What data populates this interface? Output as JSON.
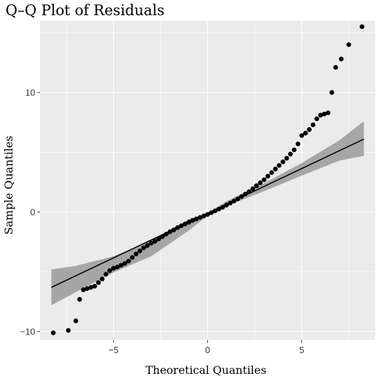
{
  "chart_data": {
    "type": "scatter",
    "title": "Q–Q Plot of Residuals",
    "xlabel": "Theoretical Quantiles",
    "ylabel": "Sample Quantiles",
    "xlim": [
      -8.9,
      8.9
    ],
    "ylim": [
      -10.7,
      16.0
    ],
    "xticks": [
      {
        "value": -5,
        "label": "−5"
      },
      {
        "value": 0,
        "label": "0"
      },
      {
        "value": 5,
        "label": "5"
      }
    ],
    "yticks": [
      {
        "value": -10,
        "label": "−10"
      },
      {
        "value": 0,
        "label": "0"
      },
      {
        "value": 10,
        "label": "10"
      }
    ],
    "grid": true,
    "panel_background": "#ebebeb",
    "grid_color": "#ffffff",
    "point_color": "#000000",
    "line_color": "#000000",
    "band_color": "#a6a6a6",
    "reference_line": {
      "x": [
        -8.3,
        8.3
      ],
      "y": [
        -6.3,
        6.1
      ]
    },
    "confidence_band": {
      "x": [
        -8.3,
        -7,
        -5,
        -3,
        -1,
        0,
        1,
        3,
        5,
        7,
        8.3
      ],
      "lower": [
        -7.8,
        -6.7,
        -5.05,
        -3.7,
        -1.55,
        -0.32,
        0.5,
        1.75,
        3.05,
        4.3,
        4.7
      ],
      "upper": [
        -4.8,
        -4.5,
        -3.7,
        -2.4,
        -0.6,
        -0.1,
        0.9,
        2.4,
        4.1,
        6.0,
        7.6
      ]
    },
    "points": {
      "x": [
        -8.2,
        -7.4,
        -7.0,
        -6.8,
        -6.6,
        -6.4,
        -6.2,
        -6.0,
        -5.8,
        -5.6,
        -5.4,
        -5.2,
        -5.0,
        -4.8,
        -4.6,
        -4.4,
        -4.2,
        -4.0,
        -3.8,
        -3.6,
        -3.4,
        -3.2,
        -3.0,
        -2.8,
        -2.6,
        -2.4,
        -2.2,
        -2.0,
        -1.8,
        -1.6,
        -1.4,
        -1.2,
        -1.0,
        -0.8,
        -0.6,
        -0.4,
        -0.2,
        0.0,
        0.2,
        0.4,
        0.6,
        0.8,
        1.0,
        1.2,
        1.4,
        1.6,
        1.8,
        2.0,
        2.2,
        2.4,
        2.6,
        2.8,
        3.0,
        3.2,
        3.4,
        3.6,
        3.8,
        4.0,
        4.2,
        4.4,
        4.6,
        4.8,
        5.0,
        5.2,
        5.4,
        5.6,
        5.8,
        6.0,
        6.2,
        6.4,
        6.6,
        6.8,
        7.1,
        7.5,
        8.2
      ],
      "y": [
        -10.1,
        -9.9,
        -9.1,
        -7.3,
        -6.5,
        -6.4,
        -6.3,
        -6.2,
        -5.9,
        -5.6,
        -5.2,
        -4.9,
        -4.7,
        -4.6,
        -4.45,
        -4.3,
        -4.1,
        -3.8,
        -3.5,
        -3.25,
        -3.0,
        -2.8,
        -2.6,
        -2.45,
        -2.25,
        -2.05,
        -1.85,
        -1.65,
        -1.5,
        -1.3,
        -1.15,
        -1.0,
        -0.85,
        -0.7,
        -0.58,
        -0.45,
        -0.32,
        -0.2,
        -0.05,
        0.1,
        0.25,
        0.4,
        0.58,
        0.75,
        0.92,
        1.1,
        1.3,
        1.5,
        1.7,
        1.95,
        2.2,
        2.45,
        2.7,
        3.0,
        3.3,
        3.6,
        3.9,
        4.2,
        4.5,
        4.85,
        5.2,
        5.7,
        6.4,
        6.6,
        6.9,
        7.3,
        7.8,
        8.1,
        8.2,
        8.3,
        10.0,
        12.1,
        12.8,
        14.0,
        15.5
      ]
    }
  }
}
